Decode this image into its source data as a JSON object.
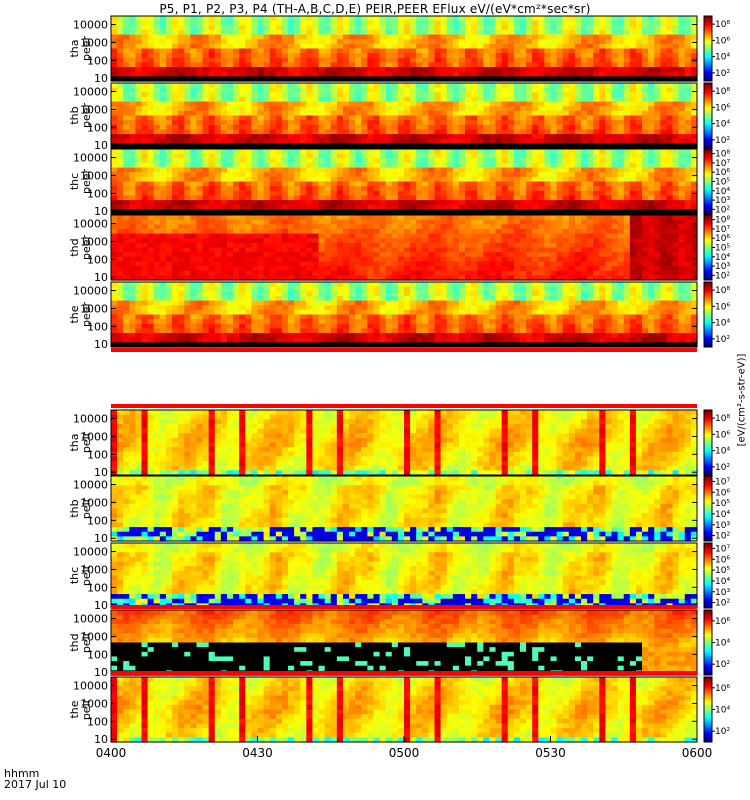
{
  "title": "P5, P1, P2, P3, P4 (TH-A,B,C,D,E) PEIR,PEER EFlux eV/(eV*cm²*sec*sr)",
  "footer": {
    "time_label": "hhmm",
    "date_label": "2017 Jul 10"
  },
  "colorbar_title": "[eV/(cm²-s-str-eV)]",
  "chart_data": {
    "type": "heatmap",
    "x_ticks": [
      "0400",
      "0430",
      "0500",
      "0530",
      "0600"
    ],
    "x_range_minutes": [
      0,
      120
    ],
    "y_scale": "log",
    "panels": [
      {
        "probe": "tha",
        "species": "peer",
        "ylim": [
          7,
          30000
        ],
        "y_ticks": [
          "10",
          "100",
          "1000",
          "10000"
        ],
        "cb_ticks": [
          "10²",
          "10⁴",
          "10⁶",
          "10⁸"
        ],
        "cb_range_log": [
          1,
          9
        ],
        "kind": "e"
      },
      {
        "probe": "thb",
        "species": "peer",
        "ylim": [
          7,
          30000
        ],
        "y_ticks": [
          "10",
          "100",
          "1000",
          "10000"
        ],
        "cb_ticks": [
          "10²",
          "10⁴",
          "10⁶",
          "10⁸"
        ],
        "cb_range_log": [
          1,
          9
        ],
        "kind": "e"
      },
      {
        "probe": "thc",
        "species": "peer",
        "ylim": [
          7,
          30000
        ],
        "y_ticks": [
          "10",
          "100",
          "1000",
          "10000"
        ],
        "cb_ticks": [
          "10²",
          "10³",
          "10⁴",
          "10⁵",
          "10⁶",
          "10⁷",
          "10⁸"
        ],
        "cb_range_log": [
          1.5,
          8.5
        ],
        "kind": "e"
      },
      {
        "probe": "thd",
        "species": "peer",
        "ylim": [
          7,
          30000
        ],
        "y_ticks": [
          "10",
          "100",
          "1000",
          "10000"
        ],
        "cb_ticks": [
          "10²",
          "10³",
          "10⁴",
          "10⁵",
          "10⁶",
          "10⁷",
          "10⁸"
        ],
        "cb_range_log": [
          1.5,
          8.5
        ],
        "kind": "ed"
      },
      {
        "probe": "the",
        "species": "peer",
        "ylim": [
          7,
          30000
        ],
        "y_ticks": [
          "10",
          "100",
          "1000",
          "10000"
        ],
        "cb_ticks": [
          "10²",
          "10⁴",
          "10⁶",
          "10⁸"
        ],
        "cb_range_log": [
          1,
          9
        ],
        "kind": "e"
      },
      {
        "probe": "tha",
        "species": "peir",
        "ylim": [
          7,
          30000
        ],
        "y_ticks": [
          "10",
          "100",
          "1000",
          "10000"
        ],
        "cb_ticks": [
          "10²",
          "10⁴",
          "10⁶",
          "10⁸"
        ],
        "cb_range_log": [
          1,
          9
        ],
        "kind": "i"
      },
      {
        "probe": "thb",
        "species": "peir",
        "ylim": [
          7,
          30000
        ],
        "y_ticks": [
          "10",
          "100",
          "1000",
          "10000"
        ],
        "cb_ticks": [
          "10²",
          "10³",
          "10⁴",
          "10⁵",
          "10⁶",
          "10⁷"
        ],
        "cb_range_log": [
          1.5,
          7.5
        ],
        "kind": "i2"
      },
      {
        "probe": "thc",
        "species": "peir",
        "ylim": [
          7,
          30000
        ],
        "y_ticks": [
          "10",
          "100",
          "1000",
          "10000"
        ],
        "cb_ticks": [
          "10²",
          "10³",
          "10⁴",
          "10⁵",
          "10⁶",
          "10⁷"
        ],
        "cb_range_log": [
          1.5,
          7.5
        ],
        "kind": "i2"
      },
      {
        "probe": "thd",
        "species": "peir",
        "ylim": [
          7,
          30000
        ],
        "y_ticks": [
          "10",
          "100",
          "1000",
          "10000"
        ],
        "cb_ticks": [
          "10²",
          "10⁴",
          "10⁶"
        ],
        "cb_range_log": [
          1,
          7
        ],
        "kind": "id"
      },
      {
        "probe": "the",
        "species": "peir",
        "ylim": [
          7,
          30000
        ],
        "y_ticks": [
          "10",
          "100",
          "1000",
          "10000"
        ],
        "cb_ticks": [
          "10²",
          "10⁴",
          "10⁶"
        ],
        "cb_range_log": [
          1,
          7
        ],
        "kind": "i"
      }
    ]
  }
}
